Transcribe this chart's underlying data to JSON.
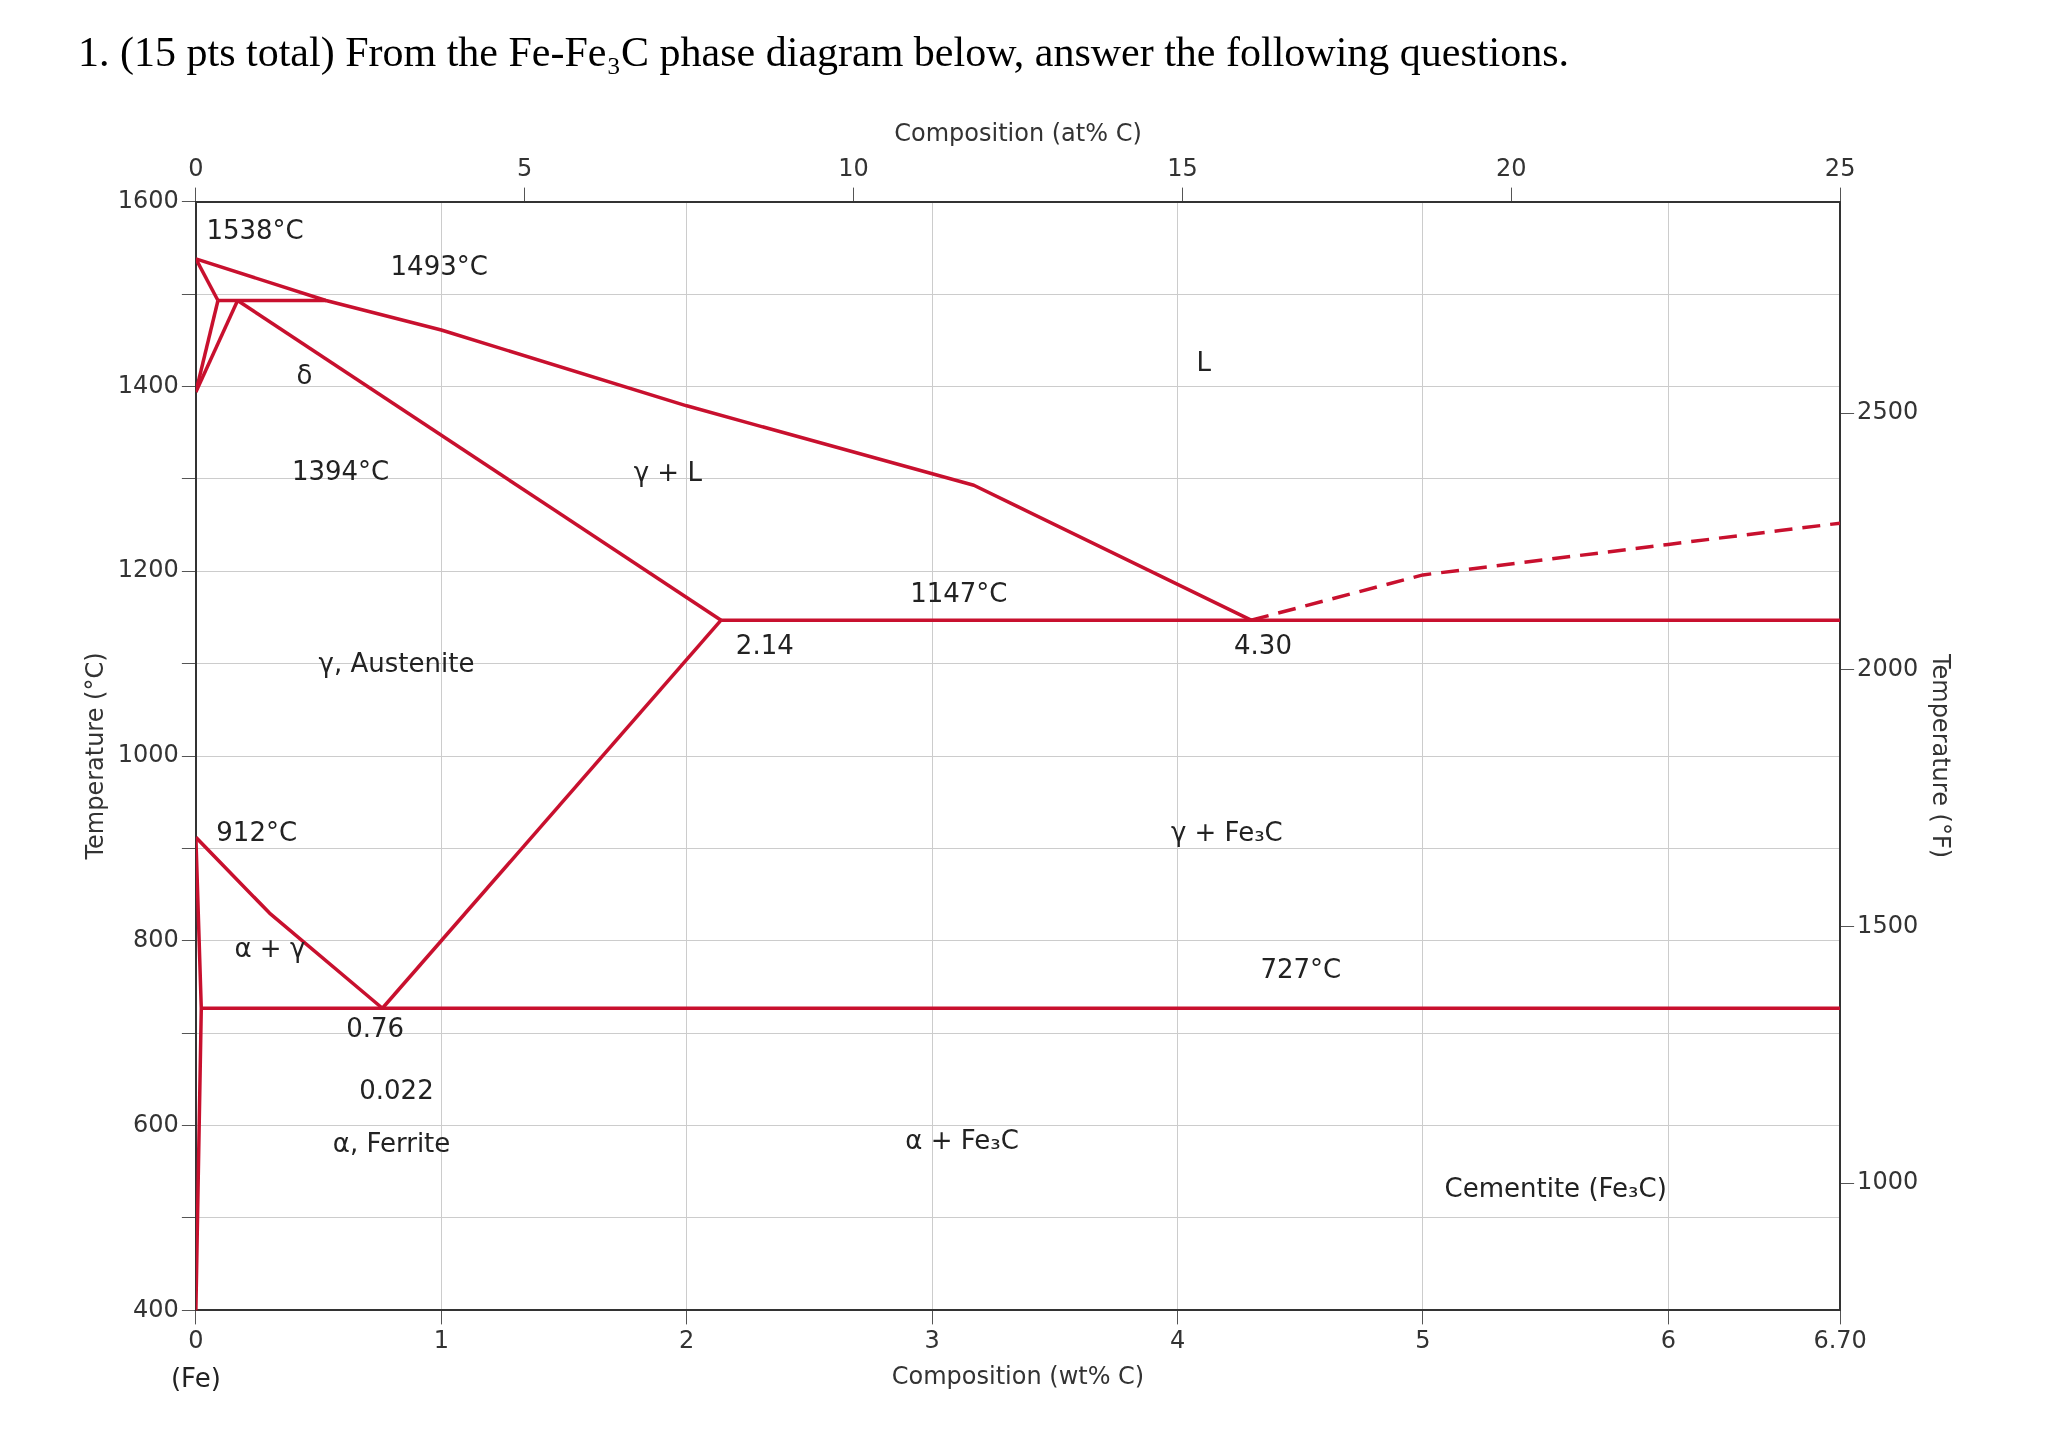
{
  "chart_data": {
    "type": "line",
    "title": "1.   (15 pts total) From the Fe-Fe₃C phase diagram below, answer the following questions.",
    "xlabel": "Composition (wt% C)",
    "x2label": "Composition (at% C)",
    "ylabel": "Temperature (°C)",
    "y2label": "Temperature (°F)",
    "xlim": [
      0,
      6.7
    ],
    "xticks": [
      0,
      1,
      2,
      3,
      4,
      5,
      6,
      {
        "value": 6.7,
        "label": "6.70"
      }
    ],
    "x2lim": [
      0,
      25
    ],
    "x2ticks": [
      0,
      5,
      10,
      15,
      20,
      25
    ],
    "ylim": [
      400,
      1600
    ],
    "yticks": [
      400,
      {
        "value": 500,
        "label": null
      },
      600,
      {
        "value": 700,
        "label": null
      },
      800,
      {
        "value": 900,
        "label": null
      },
      1000,
      {
        "value": 1100,
        "label": null
      },
      1200,
      {
        "value": 1300,
        "label": null
      },
      1400,
      {
        "value": 1500,
        "label": null
      },
      1600
    ],
    "y2lim": [
      752,
      2912
    ],
    "y2ticks": [
      1000,
      1500,
      2000,
      2500
    ],
    "grid": true,
    "legend": false,
    "marker": "none",
    "line_style": "solid",
    "series": [
      {
        "color": "#c8102e",
        "x": [
          0,
          0.53,
          1.0,
          2.0,
          3.17,
          4.3
        ],
        "values": [
          1538,
          1493,
          1461,
          1379,
          1293,
          1147
        ]
      },
      {
        "color": "#c8102e",
        "x": [
          0,
          0.09
        ],
        "values": [
          1538,
          1493
        ]
      },
      {
        "color": "#c8102e",
        "x": [
          0.09,
          0.53
        ],
        "values": [
          1493,
          1493
        ]
      },
      {
        "color": "#c8102e",
        "x": [
          0,
          0.09
        ],
        "values": [
          1394,
          1493
        ]
      },
      {
        "color": "#c8102e",
        "x": [
          0,
          0.17
        ],
        "values": [
          1394,
          1493
        ]
      },
      {
        "color": "#c8102e",
        "x": [
          0.17,
          2.14
        ],
        "values": [
          1493,
          1147
        ]
      },
      {
        "color": "#c8102e",
        "x": [
          2.14,
          6.7
        ],
        "values": [
          1147,
          1147
        ]
      },
      {
        "color": "#c8102e",
        "x": [
          2.14,
          0.76
        ],
        "values": [
          1147,
          727
        ]
      },
      {
        "color": "#c8102e",
        "x": [
          0,
          0.3,
          0.76
        ],
        "values": [
          912,
          830,
          727
        ]
      },
      {
        "color": "#c8102e",
        "x": [
          0,
          0.022,
          0
        ],
        "values": [
          912,
          727,
          400
        ]
      },
      {
        "color": "#c8102e",
        "x": [
          0.022,
          6.7
        ],
        "values": [
          727,
          727
        ]
      },
      {
        "color": "#c8102e",
        "x": [
          4.3,
          5.0,
          6.0,
          6.7
        ],
        "values": [
          1147,
          1196,
          1229,
          1252
        ],
        "line_style": "dashed"
      }
    ],
    "annotations": [
      "1538°C",
      "1493°C",
      "δ",
      "1394°C",
      "L",
      "γ + L",
      "1147°C",
      "2.14",
      "4.30",
      "γ, Austenite",
      "912°C",
      "γ + Fe₃C",
      "α + γ",
      "727°C",
      "0.76",
      "0.022",
      "α, Ferrite",
      "α + Fe₃C",
      "Cementite (Fe₃C)",
      "(Fe)"
    ]
  }
}
